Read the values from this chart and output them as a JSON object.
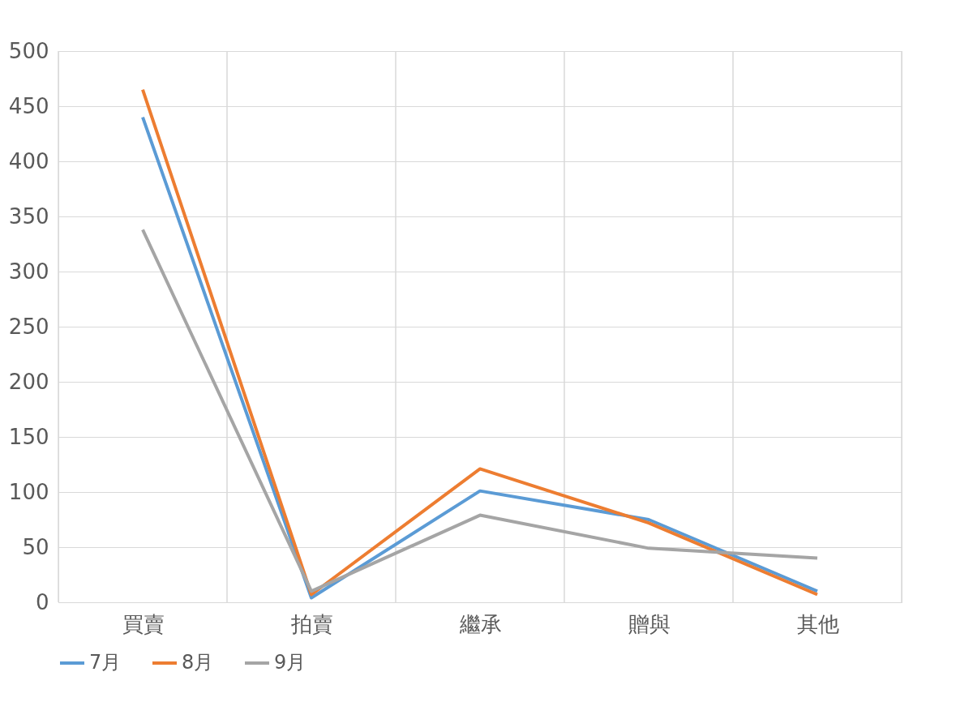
{
  "chart_data": {
    "type": "line",
    "categories": [
      "買賣",
      "拍賣",
      "繼承",
      "贈與",
      "其他"
    ],
    "series": [
      {
        "name": "7月",
        "color": "#5b9bd5",
        "values": [
          440,
          4,
          101,
          75,
          10
        ]
      },
      {
        "name": "8月",
        "color": "#ed7d31",
        "values": [
          465,
          7,
          121,
          72,
          7
        ]
      },
      {
        "name": "9月",
        "color": "#a5a5a5",
        "values": [
          338,
          10,
          79,
          49,
          40
        ]
      }
    ],
    "ylim": [
      0,
      500
    ],
    "yticks": [
      0,
      50,
      100,
      150,
      200,
      250,
      300,
      350,
      400,
      450,
      500
    ],
    "grid": true,
    "legend": "bottom",
    "marker": "none",
    "line_style": "solid"
  }
}
